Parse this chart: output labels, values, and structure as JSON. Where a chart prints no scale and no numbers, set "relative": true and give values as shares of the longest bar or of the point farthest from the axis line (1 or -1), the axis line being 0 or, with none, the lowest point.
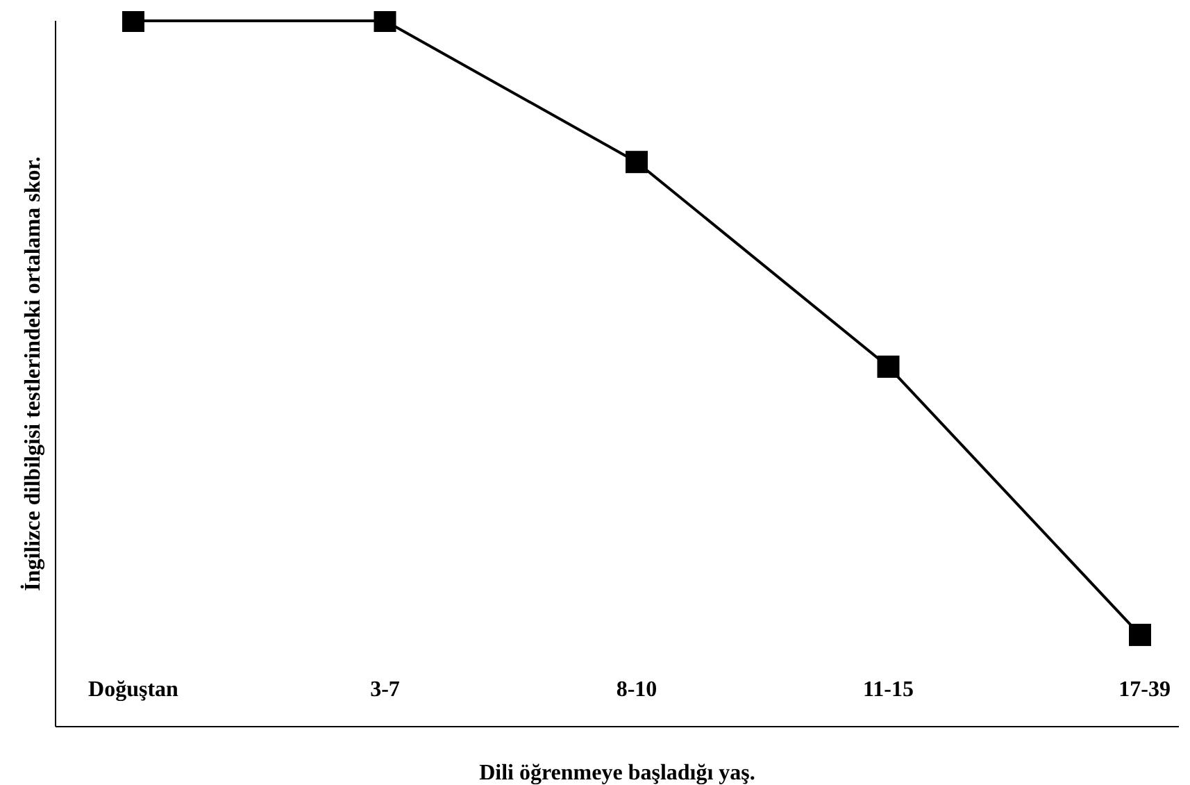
{
  "chart_data": {
    "type": "line",
    "relative": true,
    "xlabel": "Dili öğrenmeye başladığı yaş.",
    "ylabel": "İngilizce dilbilgisi testlerindeki ortalama skor.",
    "categories": [
      "Doğuştan",
      "3-7",
      "8-10",
      "11-15",
      "17-39"
    ],
    "series": [
      {
        "color": "#000000",
        "values": [
          1,
          1,
          0.8,
          0.51,
          0.13
        ]
      }
    ],
    "marker": "square",
    "line_style": "solid",
    "grid": false,
    "legend": false
  }
}
